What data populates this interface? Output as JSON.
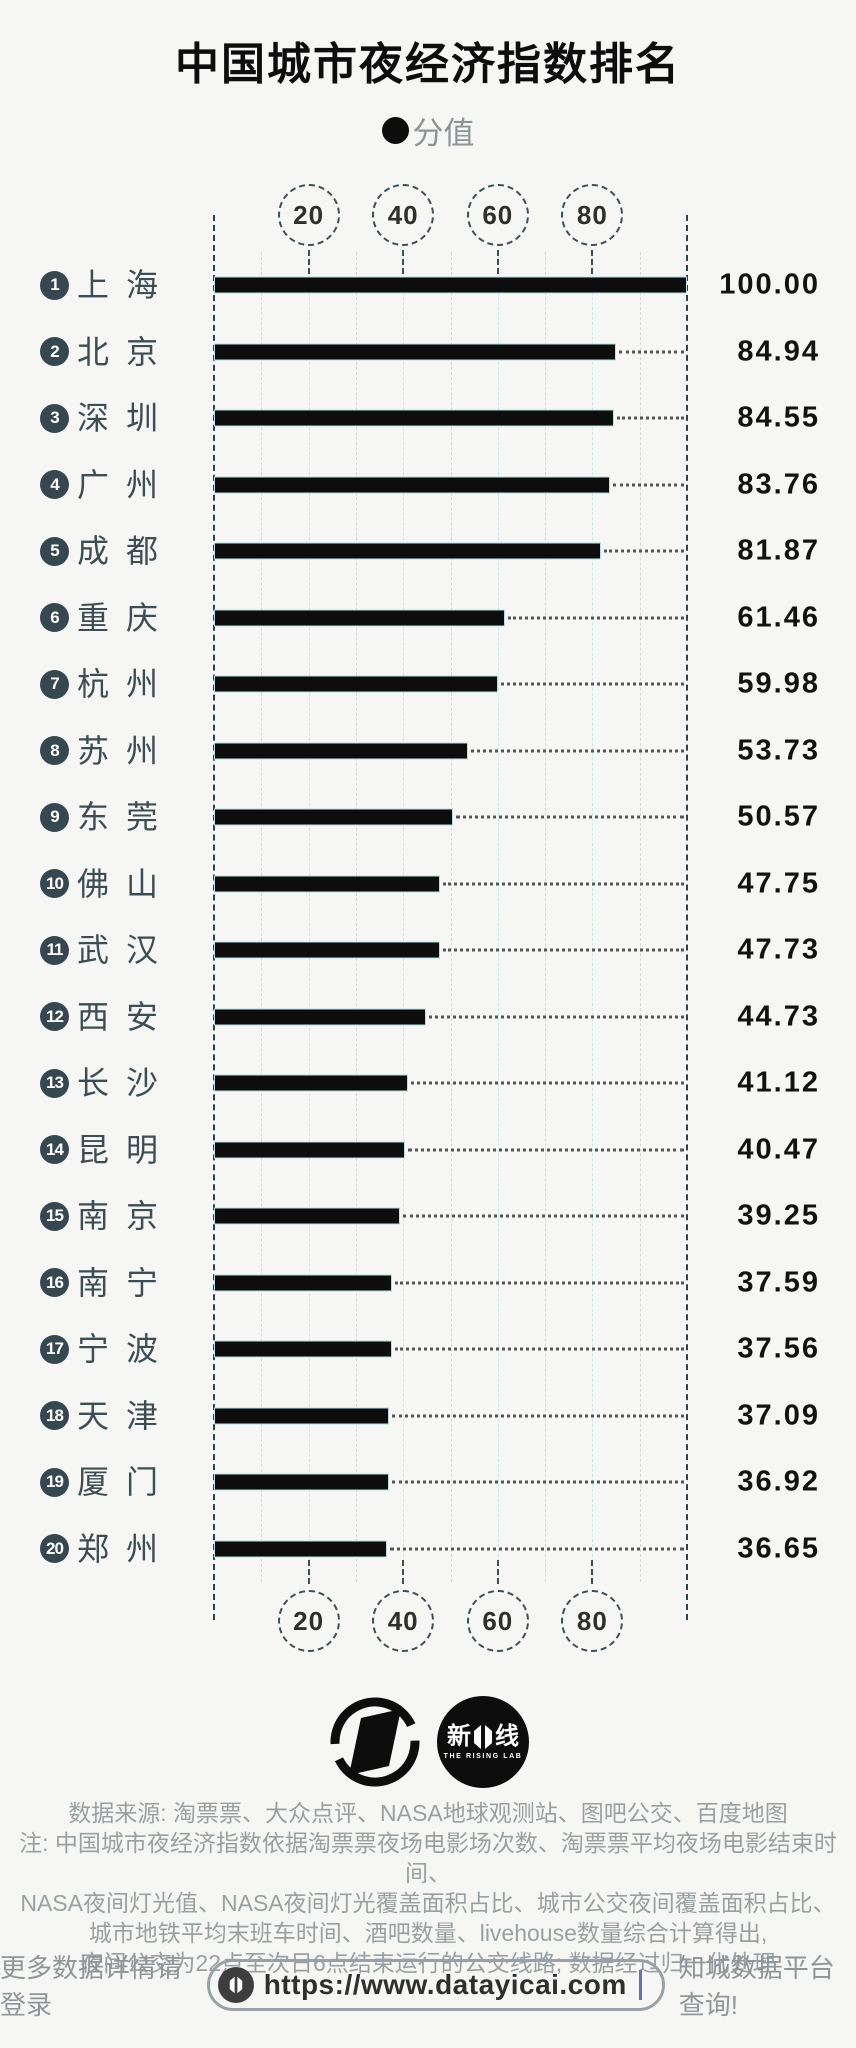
{
  "title": "中国城市夜经济指数排名",
  "legend": {
    "marker": "●",
    "label": "分值"
  },
  "chart_data": {
    "type": "bar",
    "orientation": "horizontal",
    "title": "中国城市夜经济指数排名",
    "series_label": "分值",
    "xlim": [
      0,
      100
    ],
    "ticks": [
      20,
      40,
      60,
      80
    ],
    "grid": "dashed vertical gridlines every 10 units; dashed axis frame at 0 and 100; dotted leader lines from bar end to right axis",
    "rows": [
      {
        "rank": "1",
        "city": "上海",
        "value": "100.00"
      },
      {
        "rank": "2",
        "city": "北京",
        "value": "84.94"
      },
      {
        "rank": "3",
        "city": "深圳",
        "value": "84.55"
      },
      {
        "rank": "4",
        "city": "广州",
        "value": "83.76"
      },
      {
        "rank": "5",
        "city": "成都",
        "value": "81.87"
      },
      {
        "rank": "6",
        "city": "重庆",
        "value": "61.46"
      },
      {
        "rank": "7",
        "city": "杭州",
        "value": "59.98"
      },
      {
        "rank": "8",
        "city": "苏州",
        "value": "53.73"
      },
      {
        "rank": "9",
        "city": "东莞",
        "value": "50.57"
      },
      {
        "rank": "10",
        "city": "佛山",
        "value": "47.75"
      },
      {
        "rank": "11",
        "city": "武汉",
        "value": "47.73"
      },
      {
        "rank": "12",
        "city": "西安",
        "value": "44.73"
      },
      {
        "rank": "13",
        "city": "长沙",
        "value": "41.12"
      },
      {
        "rank": "14",
        "city": "昆明",
        "value": "40.47"
      },
      {
        "rank": "15",
        "city": "南京",
        "value": "39.25"
      },
      {
        "rank": "16",
        "city": "南宁",
        "value": "37.59"
      },
      {
        "rank": "17",
        "city": "宁波",
        "value": "37.56"
      },
      {
        "rank": "18",
        "city": "天津",
        "value": "37.09"
      },
      {
        "rank": "19",
        "city": "厦门",
        "value": "36.92"
      },
      {
        "rank": "20",
        "city": "郑州",
        "value": "36.65"
      }
    ]
  },
  "footer": {
    "lines": [
      "数据来源: 淘票票、大众点评、NASA地球观测站、图吧公交、百度地图",
      "注: 中国城市夜经济指数依据淘票票夜场电影场次数、淘票票平均夜场电影结束时间、",
      "NASA夜间灯光值、NASA夜间灯光覆盖面积占比、城市公交夜间覆盖面积占比、",
      "城市地铁平均末班车时间、酒吧数量、livehouse数量综合计算得出,",
      "夜间公交为22点至次日6点结束运行的公交线路; 数据经过归一化处理"
    ]
  },
  "bottom_bar": {
    "prefix": "更多数据详情请登录",
    "url": "https://www.datayicai.com",
    "suffix": "知城数据平台查询!"
  },
  "logos": {
    "rising_lab": {
      "left": "新",
      "right": "线",
      "subtext": "THE RISING LAB"
    }
  },
  "colors": {
    "bar": "#0d0d0d",
    "accent_slate": "#37474f",
    "grid_light": "#d8d8d8",
    "grid_cyan": "#c7e9ed",
    "background": "#f6f7f5",
    "footer_text": "#9aa0a2"
  }
}
